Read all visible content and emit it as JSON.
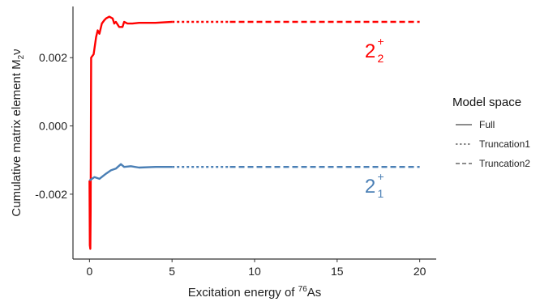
{
  "chart_data": {
    "type": "line",
    "title": "",
    "xlabel": {
      "prefix": "Excitation energy of ",
      "sup": "76",
      "suffix": "As"
    },
    "ylabel": {
      "prefix": "Cumulative matrix element M",
      "sub": "2",
      "suffix": "ν"
    },
    "xlim": [
      -1,
      21
    ],
    "ylim": [
      -0.0039,
      0.0035
    ],
    "x_ticks": [
      0,
      5,
      10,
      15,
      20
    ],
    "x_tick_labels": [
      "0",
      "5",
      "10",
      "15",
      "20"
    ],
    "y_ticks": [
      0.002,
      0.0,
      -0.002
    ],
    "y_tick_labels": [
      "0.002",
      "0.000",
      "-0.002"
    ],
    "grid": false,
    "legend": {
      "title": "Model space",
      "position": "right",
      "entries": [
        {
          "label": "Full",
          "dash": "solid"
        },
        {
          "label": "Truncation1",
          "dash": "dotted"
        },
        {
          "label": "Truncation2",
          "dash": "dashed"
        }
      ]
    },
    "series": [
      {
        "annotation": {
          "base": "2",
          "sub": "2",
          "sup": "+"
        },
        "color": "#ff0000",
        "segments": {
          "Full": [
            [
              0.0,
              -0.0016
            ],
            [
              0.02,
              -0.0035
            ],
            [
              0.05,
              -0.0036
            ],
            [
              0.07,
              -0.0025
            ],
            [
              0.1,
              0.002
            ],
            [
              0.25,
              0.0021
            ],
            [
              0.4,
              0.0026
            ],
            [
              0.5,
              0.0028
            ],
            [
              0.6,
              0.0027
            ],
            [
              0.75,
              0.003
            ],
            [
              0.9,
              0.0031
            ],
            [
              1.0,
              0.00315
            ],
            [
              1.2,
              0.0032
            ],
            [
              1.4,
              0.00315
            ],
            [
              1.5,
              0.003
            ],
            [
              1.6,
              0.00305
            ],
            [
              1.8,
              0.0029
            ],
            [
              2.0,
              0.0029
            ],
            [
              2.1,
              0.00305
            ],
            [
              2.3,
              0.003
            ],
            [
              2.6,
              0.003
            ],
            [
              3.0,
              0.00302
            ],
            [
              4.0,
              0.00302
            ],
            [
              5.0,
              0.00305
            ]
          ],
          "Truncation1": [
            [
              5.0,
              0.00305
            ],
            [
              8.5,
              0.00305
            ]
          ],
          "Truncation2": [
            [
              8.5,
              0.00305
            ],
            [
              20.0,
              0.00305
            ]
          ]
        }
      },
      {
        "annotation": {
          "base": "2",
          "sub": "1",
          "sup": "+"
        },
        "color": "#4a7fb5",
        "segments": {
          "Full": [
            [
              0.0,
              -0.0016
            ],
            [
              0.3,
              -0.0015
            ],
            [
              0.6,
              -0.00155
            ],
            [
              1.0,
              -0.0014
            ],
            [
              1.3,
              -0.0013
            ],
            [
              1.6,
              -0.00125
            ],
            [
              1.9,
              -0.00112
            ],
            [
              2.1,
              -0.0012
            ],
            [
              2.5,
              -0.00118
            ],
            [
              3.0,
              -0.00122
            ],
            [
              4.0,
              -0.0012
            ],
            [
              5.0,
              -0.0012
            ]
          ],
          "Truncation1": [
            [
              5.0,
              -0.0012
            ],
            [
              8.5,
              -0.0012
            ]
          ],
          "Truncation2": [
            [
              8.5,
              -0.0012
            ],
            [
              20.0,
              -0.0012
            ]
          ]
        }
      }
    ]
  }
}
